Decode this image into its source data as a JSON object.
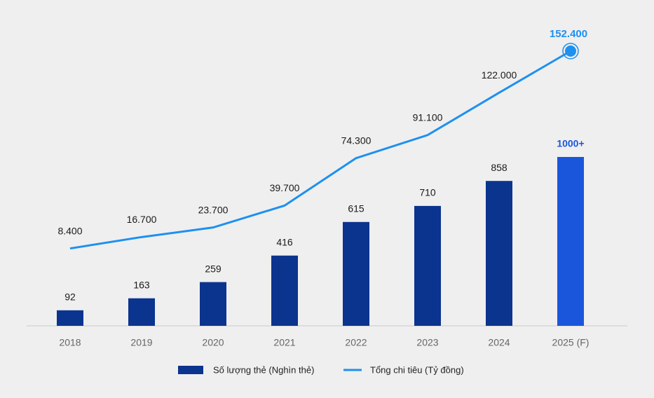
{
  "chart_data": {
    "type": "bar-line",
    "categories": [
      "2018",
      "2019",
      "2020",
      "2021",
      "2022",
      "2023",
      "2024",
      "2025 (F)"
    ],
    "series": [
      {
        "name": "Số lượng thẻ (Nghìn thẻ)",
        "type": "bar",
        "color": "#0b348f",
        "colors": [
          "#0b348f",
          "#0b348f",
          "#0b348f",
          "#0b348f",
          "#0b348f",
          "#0b348f",
          "#0b348f",
          "#1a56db"
        ],
        "values": [
          92,
          163,
          259,
          416,
          615,
          710,
          858,
          1000
        ],
        "value_labels": [
          "92",
          "163",
          "259",
          "416",
          "615",
          "710",
          "858",
          "1000+"
        ]
      },
      {
        "name": "Tổng chi tiêu (Tỷ đồng)",
        "type": "line",
        "axis": "y2",
        "color": "#1e90f0",
        "values": [
          8400,
          16700,
          23700,
          39700,
          74300,
          91100,
          122000,
          152400
        ],
        "value_labels": [
          "8.400",
          "16.700",
          "23.700",
          "39.700",
          "74.300",
          "91.100",
          "122.000",
          "152.400"
        ]
      }
    ],
    "ylim": [
      0,
      1000
    ],
    "y2lim": [
      0,
      160000
    ]
  }
}
